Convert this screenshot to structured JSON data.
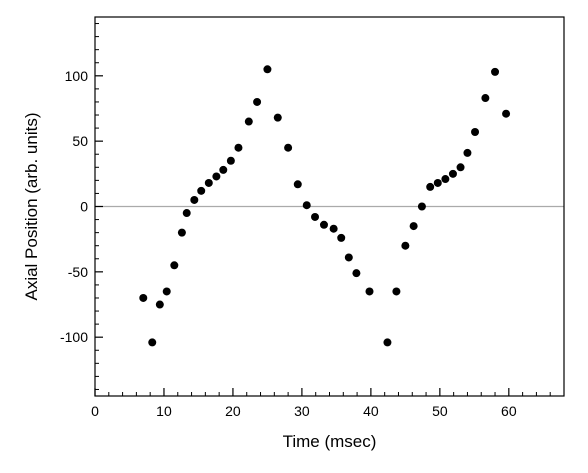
{
  "chart_data": {
    "type": "scatter",
    "title": "",
    "xlabel": "Time (msec)",
    "ylabel": "Axial Position (arb. units)",
    "xlim": [
      0,
      68
    ],
    "ylim": [
      -145,
      145
    ],
    "xticks": [
      0,
      10,
      20,
      30,
      40,
      50,
      60
    ],
    "yticks": [
      -100,
      -50,
      0,
      50,
      100
    ],
    "x_minor_step": 2,
    "y_minor_step": 10,
    "grid": false,
    "zero_line": true,
    "zero_line_color": "#aaaaaa",
    "marker_color": "#000000",
    "series": [
      {
        "x": [
          7.0,
          8.3,
          9.4,
          10.4,
          11.5,
          12.6,
          13.3,
          14.4,
          15.4,
          16.5,
          17.6,
          18.6,
          19.7,
          20.8,
          22.3,
          23.5,
          25.0,
          26.5,
          28.0,
          29.4,
          30.7,
          31.9,
          33.2,
          34.6,
          35.7,
          36.8,
          37.9,
          39.8,
          42.4,
          43.7,
          45.0,
          46.2,
          47.4,
          48.6,
          49.7,
          50.8,
          51.9,
          53.0,
          54.0,
          55.1,
          56.6,
          58.0,
          59.6
        ],
        "y": [
          -70,
          -104,
          -75,
          -65,
          -45,
          -20,
          -5,
          5,
          12,
          18,
          23,
          28,
          35,
          45,
          65,
          80,
          105,
          68,
          45,
          17,
          1,
          -8,
          -14,
          -17,
          -24,
          -39,
          -51,
          -65,
          -104,
          -65,
          -30,
          -15,
          0,
          15,
          18,
          21,
          25,
          30,
          41,
          57,
          83,
          103,
          71
        ]
      }
    ]
  }
}
